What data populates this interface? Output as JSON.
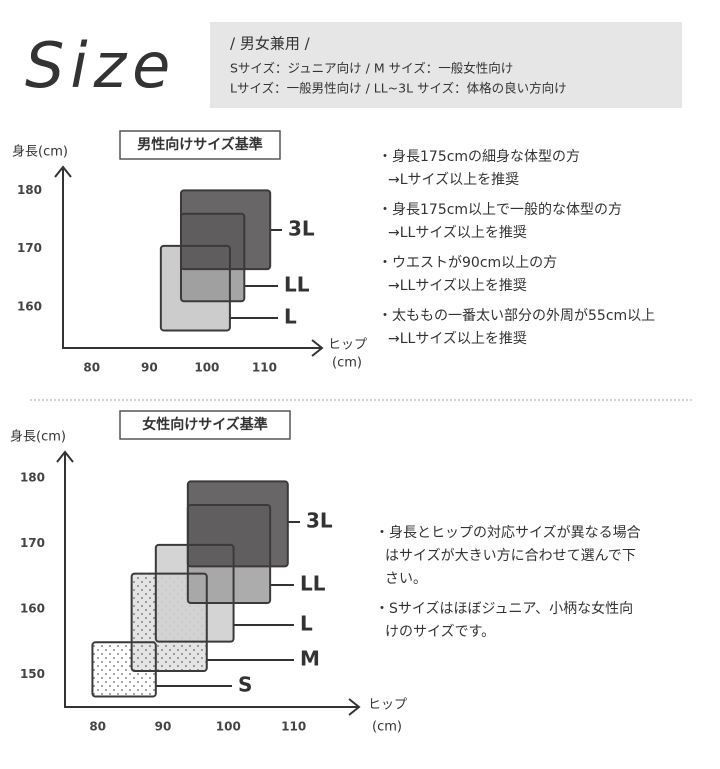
{
  "header": {
    "title": "Size",
    "lines": [
      "/ 男女兼用 /",
      "Sサイズ：ジュニア向け / M サイズ：一般女性向け",
      "Lサイズ：一般男性向け / LL~3L サイズ：体格の良い方向け"
    ]
  },
  "size_charts": [
    {
      "type": "box-range",
      "title": "男性向けサイズ基準",
      "y_label": "身長(cm)",
      "x_label": [
        "ヒップ",
        "(cm)"
      ],
      "xlim": [
        75,
        120
      ],
      "ylim": [
        153,
        184
      ],
      "xticks": [
        80,
        90,
        100,
        110
      ],
      "yticks": [
        160,
        170,
        180
      ],
      "boxes": [
        {
          "name": "L",
          "hip": [
            92,
            104
          ],
          "height": [
            156,
            170.5
          ],
          "color": "#c6c6c6"
        },
        {
          "name": "LL",
          "hip": [
            95.5,
            106.5
          ],
          "height": [
            161,
            176
          ],
          "color": "#9b9b9b"
        },
        {
          "name": "3L",
          "hip": [
            95.5,
            111
          ],
          "height": [
            166.5,
            180
          ],
          "color": "#595556"
        }
      ],
      "notes": [
        [
          "・身長175cmの細身な体型の方",
          "→Lサイズ以上を推奨"
        ],
        [
          "・身長175cm以上で一般的な体型の方",
          "→LLサイズ以上を推奨"
        ],
        [
          "・ウエストが90cm以上の方",
          "→LLサイズ以上を推奨"
        ],
        [
          "・太ももの一番太い部分の外周が55cm以上",
          "→LLサイズ以上を推奨"
        ]
      ]
    },
    {
      "type": "box-range",
      "title": "女性向けサイズ基準",
      "y_label": "身長(cm)",
      "x_label": [
        "ヒップ",
        "(cm)"
      ],
      "xlim": [
        75,
        120
      ],
      "ylim": [
        145,
        184
      ],
      "xticks": [
        80,
        90,
        100,
        110
      ],
      "yticks": [
        150,
        160,
        170,
        180
      ],
      "boxes": [
        {
          "name": "S",
          "hip": [
            79.2,
            88.9
          ],
          "height": [
            146.6,
            154.9
          ],
          "color": "#ffffff",
          "pattern": "dots"
        },
        {
          "name": "M",
          "hip": [
            85.2,
            96.7
          ],
          "height": [
            150.5,
            165.4
          ],
          "color": "#e4e4e4",
          "pattern": "dots"
        },
        {
          "name": "L",
          "hip": [
            88.9,
            100.8
          ],
          "height": [
            155,
            169.8
          ],
          "color": "#cfcfcf"
        },
        {
          "name": "LL",
          "hip": [
            93.8,
            106.4
          ],
          "height": [
            160.9,
            175.9
          ],
          "color": "#a3a3a3"
        },
        {
          "name": "3L",
          "hip": [
            93.8,
            109.1
          ],
          "height": [
            166.5,
            179.5
          ],
          "color": "#595556"
        }
      ],
      "notes": [
        [
          "・身長とヒップの対応サイズが異なる場合",
          "はサイズが大きい方に合わせて選んで下",
          "さい。"
        ],
        [
          "・Sサイズはほぼジュニア、小柄な女性向",
          "けのサイズです。"
        ]
      ]
    }
  ]
}
